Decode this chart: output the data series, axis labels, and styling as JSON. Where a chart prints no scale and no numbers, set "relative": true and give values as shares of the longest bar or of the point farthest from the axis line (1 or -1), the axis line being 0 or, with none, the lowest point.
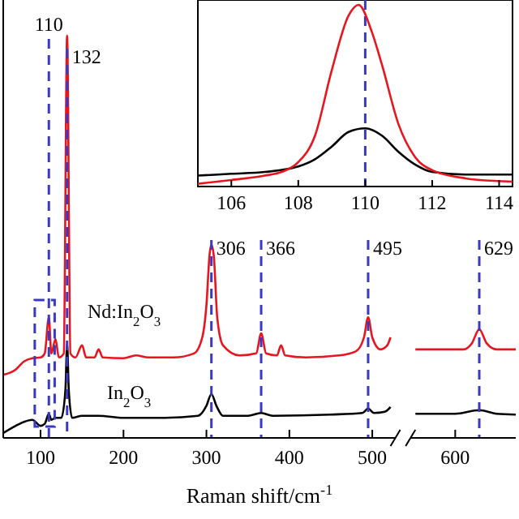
{
  "chart_data": [
    {
      "type": "line",
      "relative": true,
      "xlabel": "Raman shift/cm$^{-1}$",
      "xlim": [
        55,
        673
      ],
      "xticks": [
        100,
        200,
        300,
        400,
        500,
        600
      ],
      "grid": false,
      "series": [
        {
          "name": "Nd:In$_{2}$O$_{3}$",
          "color": "#e8141e",
          "x": [
            55,
            70,
            80,
            90,
            100,
            105,
            110,
            113,
            118,
            122,
            128,
            132,
            136,
            142,
            150,
            155,
            165,
            170,
            175,
            200,
            215,
            230,
            260,
            285,
            295,
            300,
            304,
            306,
            309,
            313,
            320,
            340,
            360,
            366,
            372,
            385,
            390,
            395,
            420,
            460,
            480,
            490,
            495,
            500,
            510,
            518,
            522,
            537,
            552,
            580,
            610,
            620,
            629,
            638,
            650,
            673
          ],
          "values": [
            0.157,
            0.17,
            0.19,
            0.198,
            0.2,
            0.21,
            0.3,
            0.21,
            0.246,
            0.2,
            0.21,
            1.0,
            0.21,
            0.2,
            0.23,
            0.2,
            0.2,
            0.22,
            0.2,
            0.198,
            0.205,
            0.2,
            0.2,
            0.21,
            0.25,
            0.33,
            0.46,
            0.48,
            0.45,
            0.3,
            0.23,
            0.205,
            0.21,
            0.26,
            0.21,
            0.205,
            0.23,
            0.205,
            0.2,
            0.205,
            0.215,
            0.25,
            0.3,
            0.25,
            0.22,
            0.23,
            0.25,
            null,
            0.22,
            0.22,
            0.22,
            0.235,
            0.27,
            0.235,
            0.22,
            0.22
          ]
        },
        {
          "name": "In$_{2}$O$_{3}$",
          "color": "#000000",
          "x": [
            55,
            70,
            80,
            90,
            100,
            105,
            110,
            113,
            118,
            125,
            130,
            132,
            134,
            138,
            150,
            170,
            200,
            250,
            290,
            300,
            306,
            312,
            320,
            350,
            366,
            380,
            450,
            488,
            495,
            502,
            515,
            522,
            537,
            552,
            600,
            629,
            650,
            673
          ],
          "values": [
            0.012,
            0.03,
            0.04,
            0.045,
            0.03,
            0.035,
            0.06,
            0.045,
            0.05,
            0.05,
            0.12,
            0.235,
            0.12,
            0.05,
            0.055,
            0.055,
            0.05,
            0.05,
            0.055,
            0.08,
            0.109,
            0.08,
            0.055,
            0.055,
            0.062,
            0.055,
            0.058,
            0.062,
            0.073,
            0.062,
            0.065,
            0.077,
            null,
            0.06,
            0.06,
            0.069,
            0.06,
            0.058
          ]
        }
      ],
      "ref_lines": [
        {
          "axis": "x",
          "value": 110,
          "label": "110",
          "color": "#3a3ac0",
          "line_style": "dashed"
        },
        {
          "axis": "x",
          "value": 132,
          "label": "132",
          "color": "#3a3ac0",
          "line_style": "dashed"
        },
        {
          "axis": "x",
          "value": 306,
          "label": "306",
          "color": "#3a3ac0",
          "line_style": "dashed"
        },
        {
          "axis": "x",
          "value": 366,
          "label": "366",
          "color": "#3a3ac0",
          "line_style": "dashed"
        },
        {
          "axis": "x",
          "value": 495,
          "label": "495",
          "color": "#3a3ac0",
          "line_style": "dashed"
        },
        {
          "axis": "x",
          "value": 629,
          "label": "629",
          "color": "#3a3ac0",
          "line_style": "dashed"
        }
      ]
    },
    {
      "type": "line",
      "relative": true,
      "xlim": [
        105,
        114.4
      ],
      "xticks": [
        106,
        108,
        110,
        112,
        114
      ],
      "grid": false,
      "series": [
        {
          "color": "#e8141e",
          "x": [
            105,
            106,
            107,
            107.5,
            108,
            108.5,
            109,
            109.5,
            109.8,
            110.2,
            110.5,
            111,
            111.5,
            112,
            113,
            114,
            114.4
          ],
          "values": [
            0.015,
            0.036,
            0.06,
            0.08,
            0.134,
            0.28,
            0.64,
            0.94,
            1.0,
            0.85,
            0.67,
            0.34,
            0.16,
            0.09,
            0.045,
            0.03,
            0.027
          ]
        },
        {
          "color": "#000000",
          "x": [
            105,
            106,
            107,
            108,
            108.5,
            109,
            109.5,
            110,
            110.5,
            111,
            111.5,
            112,
            113,
            114,
            114.4
          ],
          "values": [
            0.06,
            0.07,
            0.08,
            0.11,
            0.15,
            0.22,
            0.3,
            0.32,
            0.28,
            0.19,
            0.12,
            0.08,
            0.066,
            0.066,
            0.066
          ]
        }
      ],
      "ref_lines": [
        {
          "axis": "x",
          "value": 110,
          "color": "#3a3ac0",
          "line_style": "dashed"
        }
      ]
    }
  ]
}
